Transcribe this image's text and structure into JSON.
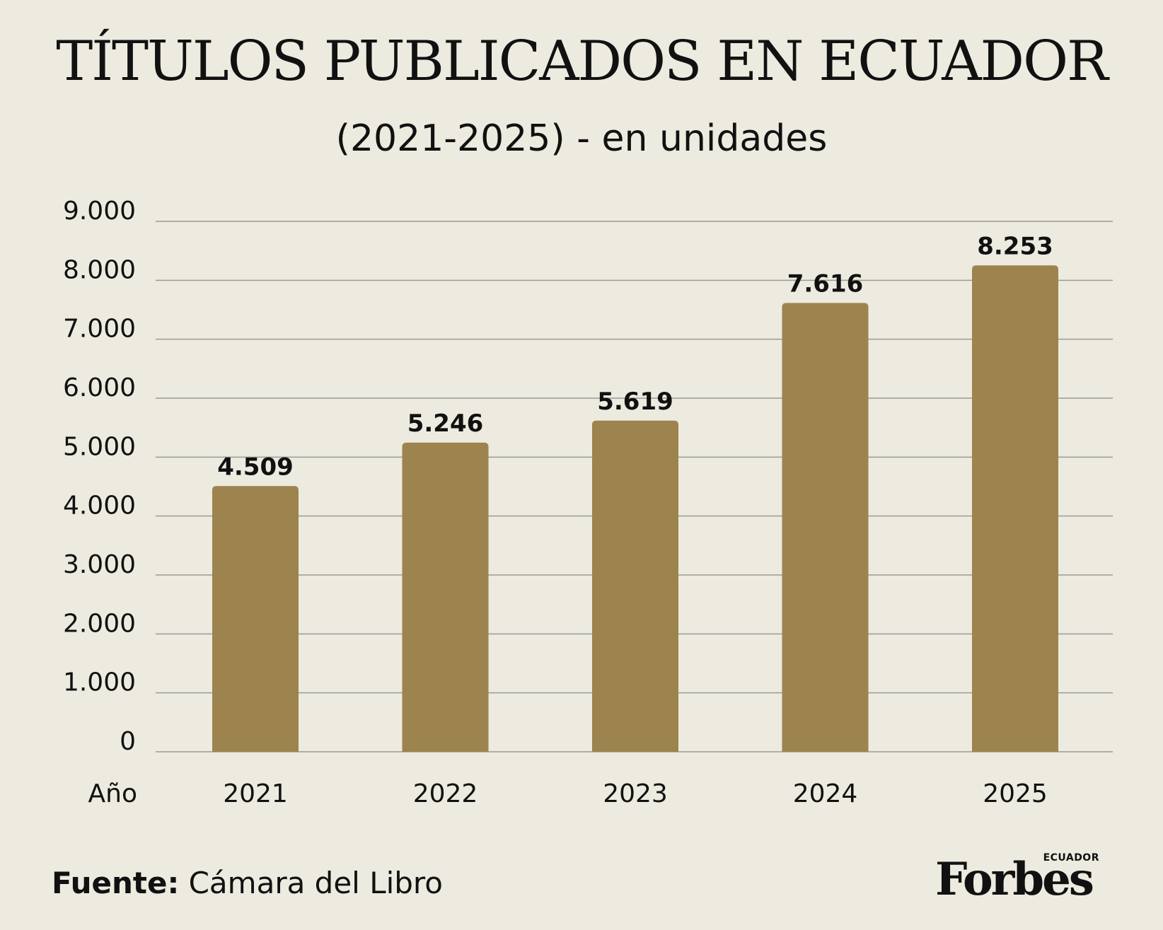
{
  "header": {
    "title": "TÍTULOS PUBLICADOS  EN ECUADOR",
    "subtitle": "(2021-2025) - en unidades"
  },
  "footer": {
    "source_label": "Fuente:",
    "source_value": "Cámara del Libro",
    "logo_word": "Forbes",
    "logo_sub": "ECUADOR"
  },
  "colors": {
    "background": "#edeadf",
    "bar": "#9d834e",
    "gridline": "#9a9a9a",
    "text": "#111111"
  },
  "chart_data": {
    "type": "bar",
    "xlabel": "Año",
    "ylabel": "",
    "categories": [
      "2021",
      "2022",
      "2023",
      "2024",
      "2025"
    ],
    "values": [
      4509,
      5246,
      5619,
      7616,
      8253
    ],
    "value_labels": [
      "4.509",
      "5.246",
      "5.619",
      "7.616",
      "8.253"
    ],
    "yticks": [
      0,
      1000,
      2000,
      3000,
      4000,
      5000,
      6000,
      7000,
      8000,
      9000
    ],
    "ytick_labels": [
      "0",
      "1.000",
      "2.000",
      "3.000",
      "4.000",
      "5.000",
      "6.000",
      "7.000",
      "8.000",
      "9.000"
    ],
    "ylim": [
      0,
      9000
    ],
    "grid": true,
    "legend": "none"
  }
}
